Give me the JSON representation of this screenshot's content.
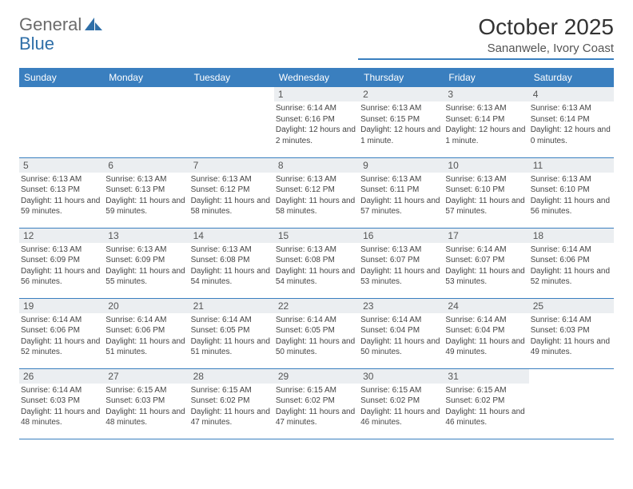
{
  "logo": {
    "text1": "General",
    "text2": "Blue"
  },
  "title": "October 2025",
  "location": "Sananwele, Ivory Coast",
  "colors": {
    "header_bg": "#3a7fbf",
    "header_text": "#ffffff",
    "daynum_bg": "#ebeef1",
    "rule": "#3a7fbf",
    "logo_accent": "#2f6fa8"
  },
  "fonts": {
    "title_pt": 28,
    "location_pt": 15,
    "dayheader_pt": 12,
    "daynum_pt": 12,
    "info_pt": 10
  },
  "day_headers": [
    "Sunday",
    "Monday",
    "Tuesday",
    "Wednesday",
    "Thursday",
    "Friday",
    "Saturday"
  ],
  "weeks": [
    [
      {
        "n": "",
        "sr": "",
        "ss": "",
        "dl": "",
        "empty": true
      },
      {
        "n": "",
        "sr": "",
        "ss": "",
        "dl": "",
        "empty": true
      },
      {
        "n": "",
        "sr": "",
        "ss": "",
        "dl": "",
        "empty": true
      },
      {
        "n": "1",
        "sr": "Sunrise: 6:14 AM",
        "ss": "Sunset: 6:16 PM",
        "dl": "Daylight: 12 hours and 2 minutes."
      },
      {
        "n": "2",
        "sr": "Sunrise: 6:13 AM",
        "ss": "Sunset: 6:15 PM",
        "dl": "Daylight: 12 hours and 1 minute."
      },
      {
        "n": "3",
        "sr": "Sunrise: 6:13 AM",
        "ss": "Sunset: 6:14 PM",
        "dl": "Daylight: 12 hours and 1 minute."
      },
      {
        "n": "4",
        "sr": "Sunrise: 6:13 AM",
        "ss": "Sunset: 6:14 PM",
        "dl": "Daylight: 12 hours and 0 minutes."
      }
    ],
    [
      {
        "n": "5",
        "sr": "Sunrise: 6:13 AM",
        "ss": "Sunset: 6:13 PM",
        "dl": "Daylight: 11 hours and 59 minutes."
      },
      {
        "n": "6",
        "sr": "Sunrise: 6:13 AM",
        "ss": "Sunset: 6:13 PM",
        "dl": "Daylight: 11 hours and 59 minutes."
      },
      {
        "n": "7",
        "sr": "Sunrise: 6:13 AM",
        "ss": "Sunset: 6:12 PM",
        "dl": "Daylight: 11 hours and 58 minutes."
      },
      {
        "n": "8",
        "sr": "Sunrise: 6:13 AM",
        "ss": "Sunset: 6:12 PM",
        "dl": "Daylight: 11 hours and 58 minutes."
      },
      {
        "n": "9",
        "sr": "Sunrise: 6:13 AM",
        "ss": "Sunset: 6:11 PM",
        "dl": "Daylight: 11 hours and 57 minutes."
      },
      {
        "n": "10",
        "sr": "Sunrise: 6:13 AM",
        "ss": "Sunset: 6:10 PM",
        "dl": "Daylight: 11 hours and 57 minutes."
      },
      {
        "n": "11",
        "sr": "Sunrise: 6:13 AM",
        "ss": "Sunset: 6:10 PM",
        "dl": "Daylight: 11 hours and 56 minutes."
      }
    ],
    [
      {
        "n": "12",
        "sr": "Sunrise: 6:13 AM",
        "ss": "Sunset: 6:09 PM",
        "dl": "Daylight: 11 hours and 56 minutes."
      },
      {
        "n": "13",
        "sr": "Sunrise: 6:13 AM",
        "ss": "Sunset: 6:09 PM",
        "dl": "Daylight: 11 hours and 55 minutes."
      },
      {
        "n": "14",
        "sr": "Sunrise: 6:13 AM",
        "ss": "Sunset: 6:08 PM",
        "dl": "Daylight: 11 hours and 54 minutes."
      },
      {
        "n": "15",
        "sr": "Sunrise: 6:13 AM",
        "ss": "Sunset: 6:08 PM",
        "dl": "Daylight: 11 hours and 54 minutes."
      },
      {
        "n": "16",
        "sr": "Sunrise: 6:13 AM",
        "ss": "Sunset: 6:07 PM",
        "dl": "Daylight: 11 hours and 53 minutes."
      },
      {
        "n": "17",
        "sr": "Sunrise: 6:14 AM",
        "ss": "Sunset: 6:07 PM",
        "dl": "Daylight: 11 hours and 53 minutes."
      },
      {
        "n": "18",
        "sr": "Sunrise: 6:14 AM",
        "ss": "Sunset: 6:06 PM",
        "dl": "Daylight: 11 hours and 52 minutes."
      }
    ],
    [
      {
        "n": "19",
        "sr": "Sunrise: 6:14 AM",
        "ss": "Sunset: 6:06 PM",
        "dl": "Daylight: 11 hours and 52 minutes."
      },
      {
        "n": "20",
        "sr": "Sunrise: 6:14 AM",
        "ss": "Sunset: 6:06 PM",
        "dl": "Daylight: 11 hours and 51 minutes."
      },
      {
        "n": "21",
        "sr": "Sunrise: 6:14 AM",
        "ss": "Sunset: 6:05 PM",
        "dl": "Daylight: 11 hours and 51 minutes."
      },
      {
        "n": "22",
        "sr": "Sunrise: 6:14 AM",
        "ss": "Sunset: 6:05 PM",
        "dl": "Daylight: 11 hours and 50 minutes."
      },
      {
        "n": "23",
        "sr": "Sunrise: 6:14 AM",
        "ss": "Sunset: 6:04 PM",
        "dl": "Daylight: 11 hours and 50 minutes."
      },
      {
        "n": "24",
        "sr": "Sunrise: 6:14 AM",
        "ss": "Sunset: 6:04 PM",
        "dl": "Daylight: 11 hours and 49 minutes."
      },
      {
        "n": "25",
        "sr": "Sunrise: 6:14 AM",
        "ss": "Sunset: 6:03 PM",
        "dl": "Daylight: 11 hours and 49 minutes."
      }
    ],
    [
      {
        "n": "26",
        "sr": "Sunrise: 6:14 AM",
        "ss": "Sunset: 6:03 PM",
        "dl": "Daylight: 11 hours and 48 minutes."
      },
      {
        "n": "27",
        "sr": "Sunrise: 6:15 AM",
        "ss": "Sunset: 6:03 PM",
        "dl": "Daylight: 11 hours and 48 minutes."
      },
      {
        "n": "28",
        "sr": "Sunrise: 6:15 AM",
        "ss": "Sunset: 6:02 PM",
        "dl": "Daylight: 11 hours and 47 minutes."
      },
      {
        "n": "29",
        "sr": "Sunrise: 6:15 AM",
        "ss": "Sunset: 6:02 PM",
        "dl": "Daylight: 11 hours and 47 minutes."
      },
      {
        "n": "30",
        "sr": "Sunrise: 6:15 AM",
        "ss": "Sunset: 6:02 PM",
        "dl": "Daylight: 11 hours and 46 minutes."
      },
      {
        "n": "31",
        "sr": "Sunrise: 6:15 AM",
        "ss": "Sunset: 6:02 PM",
        "dl": "Daylight: 11 hours and 46 minutes."
      },
      {
        "n": "",
        "sr": "",
        "ss": "",
        "dl": "",
        "empty": true
      }
    ]
  ]
}
